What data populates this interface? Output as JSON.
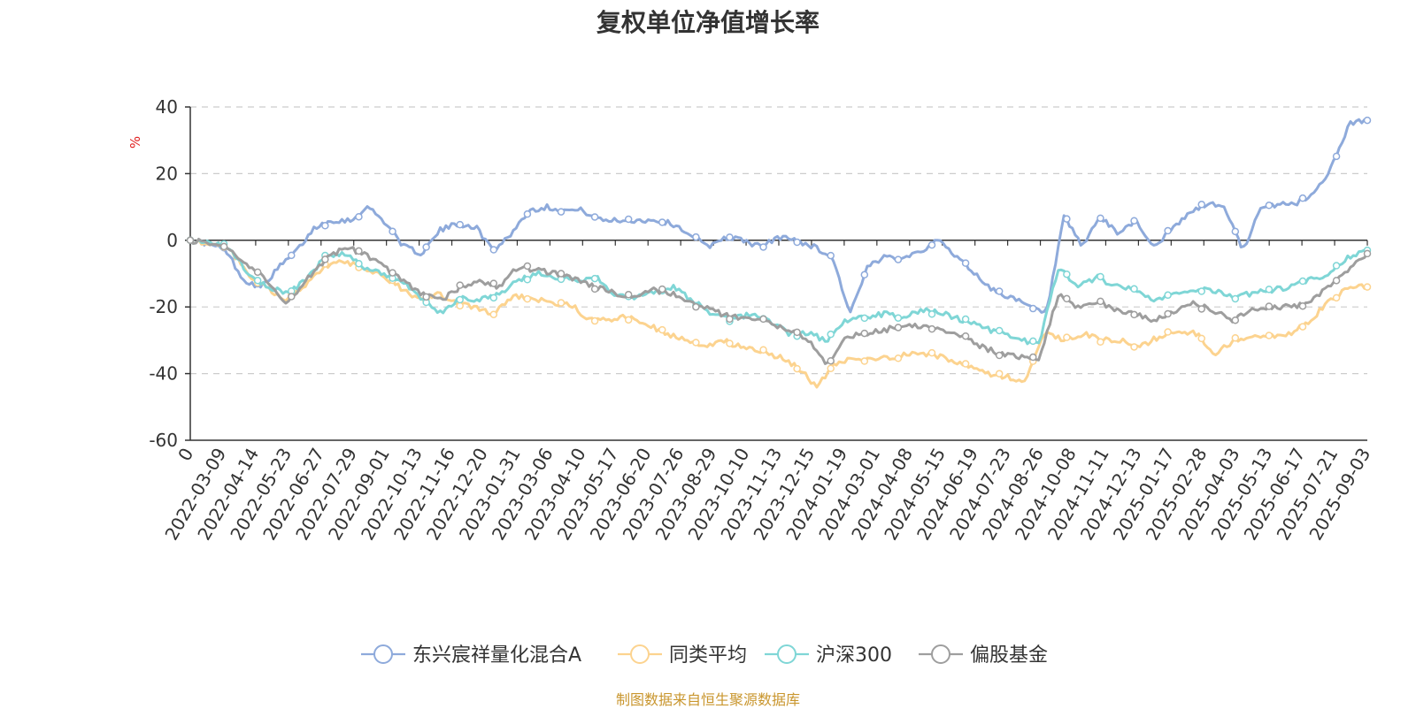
{
  "chart_data": {
    "type": "line",
    "title": "复权单位净值增长率",
    "ylabel": "%",
    "ylim": [
      -60,
      40
    ],
    "yticks": [
      -60,
      -40,
      -20,
      0,
      20,
      40
    ],
    "grid": true,
    "legend_position": "bottom-center",
    "x_tick_labels": [
      "0",
      "2022-03-09",
      "2022-04-14",
      "2022-05-23",
      "2022-06-27",
      "2022-07-29",
      "2022-09-01",
      "2022-10-13",
      "2022-11-16",
      "2022-12-20",
      "2023-01-31",
      "2023-03-06",
      "2023-04-10",
      "2023-05-17",
      "2023-06-20",
      "2023-07-26",
      "2023-08-29",
      "2023-10-10",
      "2023-11-13",
      "2023-12-15",
      "2024-01-19",
      "2024-03-01",
      "2024-04-08",
      "2024-05-15",
      "2024-06-19",
      "2024-07-23",
      "2024-08-26",
      "2024-10-08",
      "2024-11-11",
      "2024-12-13",
      "2025-01-17",
      "2025-02-28",
      "2025-04-03",
      "2025-05-13",
      "2025-06-17",
      "2025-07-21",
      "2025-09-03"
    ],
    "series": [
      {
        "name": "东兴宸祥量化混合A",
        "color": "#8eaadb",
        "values": [
          0,
          -1,
          -3,
          -12,
          -14,
          -8,
          -3,
          4,
          6,
          6,
          10,
          5,
          -2,
          -4,
          3,
          5,
          4,
          -3,
          2,
          9,
          10,
          9,
          9,
          6,
          6,
          6,
          6,
          5,
          2,
          -2,
          1,
          0,
          -2,
          1,
          0,
          -2,
          -5,
          -22,
          -8,
          -5,
          -5,
          -3,
          0,
          -5,
          -10,
          -15,
          -17,
          -20,
          -22,
          7,
          -2,
          7,
          2,
          6,
          -2,
          3,
          8,
          11,
          10,
          -3,
          9,
          11,
          11,
          14,
          22,
          35,
          36
        ]
      },
      {
        "name": "同类平均",
        "color": "#fcd38f",
        "values": [
          0,
          -1,
          -2,
          -10,
          -14,
          -18,
          -14,
          -8,
          -6,
          -8,
          -10,
          -14,
          -18,
          -16,
          -19,
          -20,
          -22,
          -17,
          -17,
          -19,
          -19,
          -24,
          -24,
          -23,
          -25,
          -28,
          -30,
          -32,
          -30,
          -32,
          -33,
          -35,
          -38,
          -44,
          -37,
          -35,
          -36,
          -35,
          -34,
          -34,
          -36,
          -38,
          -40,
          -41,
          -42,
          -28,
          -30,
          -28,
          -30,
          -30,
          -32,
          -29,
          -27,
          -28,
          -34,
          -30,
          -29,
          -29,
          -28,
          -24,
          -18,
          -14,
          -14
        ]
      },
      {
        "name": "沪深300",
        "color": "#7fd6d6",
        "values": [
          0,
          -1,
          -2,
          -10,
          -14,
          -16,
          -12,
          -5,
          -4,
          -8,
          -10,
          -12,
          -18,
          -22,
          -17,
          -18,
          -16,
          -12,
          -10,
          -11,
          -12,
          -11,
          -16,
          -17,
          -16,
          -14,
          -18,
          -22,
          -24,
          -22,
          -24,
          -28,
          -28,
          -30,
          -24,
          -23,
          -22,
          -23,
          -21,
          -22,
          -24,
          -26,
          -28,
          -30,
          -31,
          -8,
          -14,
          -11,
          -14,
          -15,
          -18,
          -16,
          -15,
          -15,
          -17,
          -16,
          -15,
          -14,
          -12,
          -10,
          -5,
          -3
        ]
      },
      {
        "name": "偏股基金",
        "color": "#9e9e9e",
        "values": [
          0,
          -1,
          -2,
          -8,
          -12,
          -19,
          -12,
          -6,
          -2,
          -4,
          -8,
          -12,
          -16,
          -18,
          -14,
          -12,
          -14,
          -8,
          -9,
          -10,
          -12,
          -14,
          -16,
          -17,
          -15,
          -16,
          -19,
          -21,
          -23,
          -23,
          -25,
          -27,
          -30,
          -37,
          -29,
          -28,
          -27,
          -25,
          -26,
          -27,
          -29,
          -32,
          -34,
          -35,
          -36,
          -16,
          -20,
          -18,
          -21,
          -22,
          -24,
          -21,
          -19,
          -21,
          -24,
          -21,
          -20,
          -20,
          -19,
          -14,
          -9,
          -4
        ]
      }
    ]
  },
  "legend": [
    {
      "label": "东兴宸祥量化混合A",
      "color": "#8eaadb"
    },
    {
      "label": "同类平均",
      "color": "#fcd38f"
    },
    {
      "label": "沪深300",
      "color": "#7fd6d6"
    },
    {
      "label": "偏股基金",
      "color": "#9e9e9e"
    }
  ],
  "source_note": "制图数据来自恒生聚源数据库"
}
